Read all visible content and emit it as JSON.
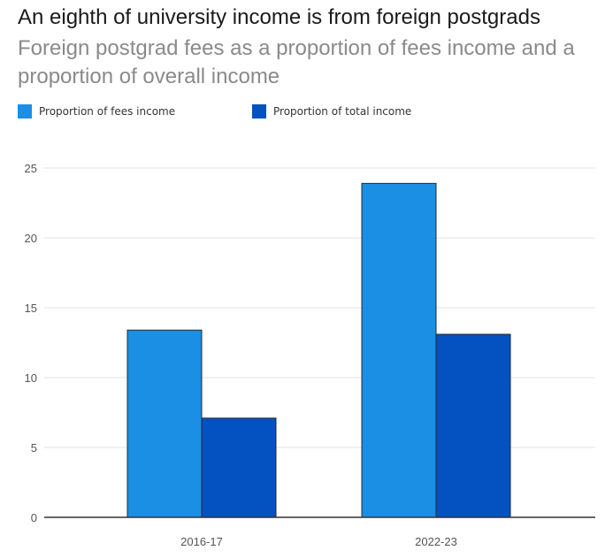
{
  "title": "An eighth of university income is from foreign postgrads",
  "subtitle": "Foreign postgrad fees as a proportion of fees income and a proportion of overall income",
  "legend": [
    {
      "label": "Proportion of fees income",
      "color": "#1a8fe3"
    },
    {
      "label": "Proportion of total income",
      "color": "#0451c2"
    }
  ],
  "chart_data": {
    "type": "bar",
    "categories": [
      "2016-17",
      "2022-23"
    ],
    "series": [
      {
        "name": "Proportion of fees income",
        "values": [
          13.4,
          23.9
        ],
        "color": "#1a8fe3"
      },
      {
        "name": "Proportion of total income",
        "values": [
          7.1,
          13.1
        ],
        "color": "#0451c2"
      }
    ],
    "ylim": [
      0,
      25
    ],
    "yticks": [
      0,
      5,
      10,
      15,
      20,
      25
    ],
    "grid": true,
    "legend_position": "top-left"
  }
}
